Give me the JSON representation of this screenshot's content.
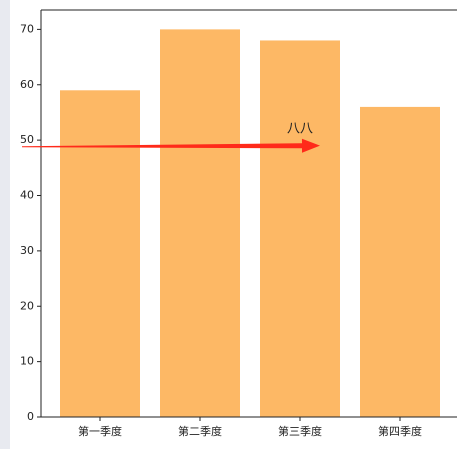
{
  "chart_data": {
    "type": "bar",
    "categories": [
      "第一季度",
      "第二季度",
      "第三季度",
      "第四季度"
    ],
    "values": [
      59,
      70,
      68,
      56
    ],
    "color": "#fdb865",
    "ylim": [
      0,
      73.5
    ],
    "yticks": [
      0,
      10,
      20,
      30,
      40,
      50,
      60,
      70
    ],
    "annotation": {
      "text": "八八",
      "x": 2,
      "y": 52,
      "arrow_from": [
        -0.78,
        48.8
      ],
      "arrow_to": [
        2.2,
        49
      ],
      "arrow_color": "#ff2a1a"
    }
  }
}
